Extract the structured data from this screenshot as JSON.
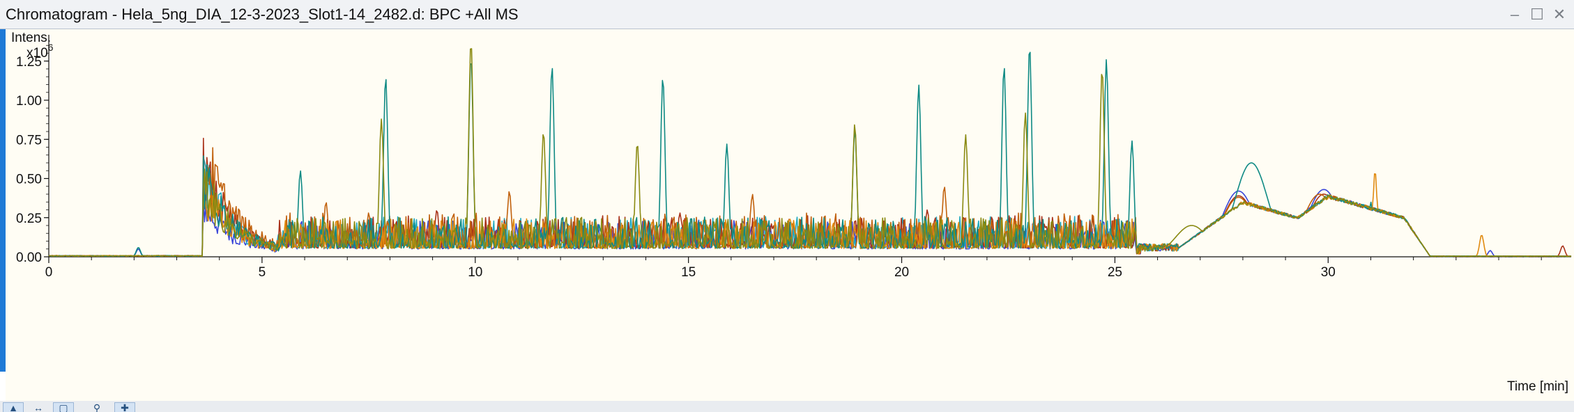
{
  "window": {
    "title": "Chromatogram - Hela_5ng_DIA_12-3-2023_Slot1-14_2482.d: BPC +All MS",
    "minimize_icon": "minimize-icon",
    "maximize_icon": "maximize-icon",
    "close_icon": "close-icon"
  },
  "colors": {
    "background": "#fffdf4",
    "accent": "#1f7ad6",
    "series": [
      "#0f8a84",
      "#8a8a12",
      "#c1610c",
      "#3a46d8",
      "#a9321a",
      "#22a9c0",
      "#e08a10"
    ]
  },
  "toolbar": {
    "icons": [
      "pointer-icon",
      "zoom-pan-icon",
      "zoom-box-icon",
      "magnifier-icon",
      "select-icon"
    ]
  },
  "chart_data": {
    "type": "line",
    "title": "",
    "ylabel": "Intens.",
    "yscale_label": "x10",
    "yscale_exp": "6",
    "xlabel": "Time [min]",
    "xlim": [
      0,
      35.7
    ],
    "ylim": [
      0,
      1.4
    ],
    "xticks": [
      0,
      5,
      10,
      15,
      20,
      25,
      30
    ],
    "xtick_labels": [
      "0",
      "5",
      "10",
      "15",
      "20",
      "25",
      "30"
    ],
    "yticks": [
      0,
      0.25,
      0.5,
      0.75,
      1.0,
      1.25
    ],
    "ytick_labels": [
      "0.00",
      "0.25",
      "0.50",
      "0.75",
      "1.00",
      "1.25"
    ],
    "grid": false,
    "legend": "none",
    "series": [
      {
        "color": "#0f8a84",
        "peaks": [
          [
            2.1,
            0.06
          ],
          [
            3.8,
            0.18
          ],
          [
            5.9,
            0.55
          ],
          [
            7.9,
            1.15
          ],
          [
            9.9,
            1.28
          ],
          [
            11.8,
            1.22
          ],
          [
            14.4,
            1.15
          ],
          [
            15.9,
            0.72
          ],
          [
            18.9,
            0.82
          ],
          [
            20.4,
            1.1
          ],
          [
            22.4,
            1.22
          ],
          [
            23.0,
            1.35
          ],
          [
            24.8,
            1.26
          ],
          [
            25.4,
            0.74
          ],
          [
            28.2,
            0.6
          ],
          [
            31.0,
            0.35
          ]
        ]
      },
      {
        "color": "#8a8a12",
        "peaks": [
          [
            7.8,
            0.88
          ],
          [
            9.9,
            1.38
          ],
          [
            11.6,
            0.8
          ],
          [
            13.8,
            0.73
          ],
          [
            18.9,
            0.85
          ],
          [
            21.5,
            0.78
          ],
          [
            22.9,
            0.92
          ],
          [
            24.7,
            1.2
          ],
          [
            26.8,
            0.2
          ]
        ]
      },
      {
        "color": "#c1610c",
        "peaks": [
          [
            6.5,
            0.35
          ],
          [
            10.8,
            0.42
          ],
          [
            16.5,
            0.4
          ],
          [
            21.0,
            0.45
          ],
          [
            27.9,
            0.38
          ],
          [
            29.8,
            0.4
          ]
        ]
      },
      {
        "color": "#3a46d8",
        "peaks": [
          [
            2.1,
            0.05
          ],
          [
            10.3,
            0.12
          ],
          [
            17.8,
            0.14
          ],
          [
            24.3,
            0.16
          ],
          [
            27.9,
            0.42
          ],
          [
            29.9,
            0.43
          ],
          [
            33.8,
            0.04
          ]
        ]
      },
      {
        "color": "#a9321a",
        "peaks": [
          [
            3.8,
            0.27
          ],
          [
            9.1,
            0.3
          ],
          [
            14.8,
            0.28
          ],
          [
            20.6,
            0.3
          ],
          [
            27.9,
            0.39
          ],
          [
            29.9,
            0.4
          ],
          [
            35.5,
            0.07
          ]
        ]
      },
      {
        "color": "#22a9c0",
        "peaks": [
          [
            3.9,
            0.17
          ],
          [
            5.4,
            0.15
          ],
          [
            8.5,
            0.2
          ],
          [
            25.0,
            0.18
          ],
          [
            27.8,
            0.3
          ],
          [
            29.7,
            0.3
          ]
        ]
      },
      {
        "color": "#e08a10",
        "peaks": [
          [
            31.1,
            0.55
          ],
          [
            33.6,
            0.14
          ]
        ]
      }
    ]
  }
}
